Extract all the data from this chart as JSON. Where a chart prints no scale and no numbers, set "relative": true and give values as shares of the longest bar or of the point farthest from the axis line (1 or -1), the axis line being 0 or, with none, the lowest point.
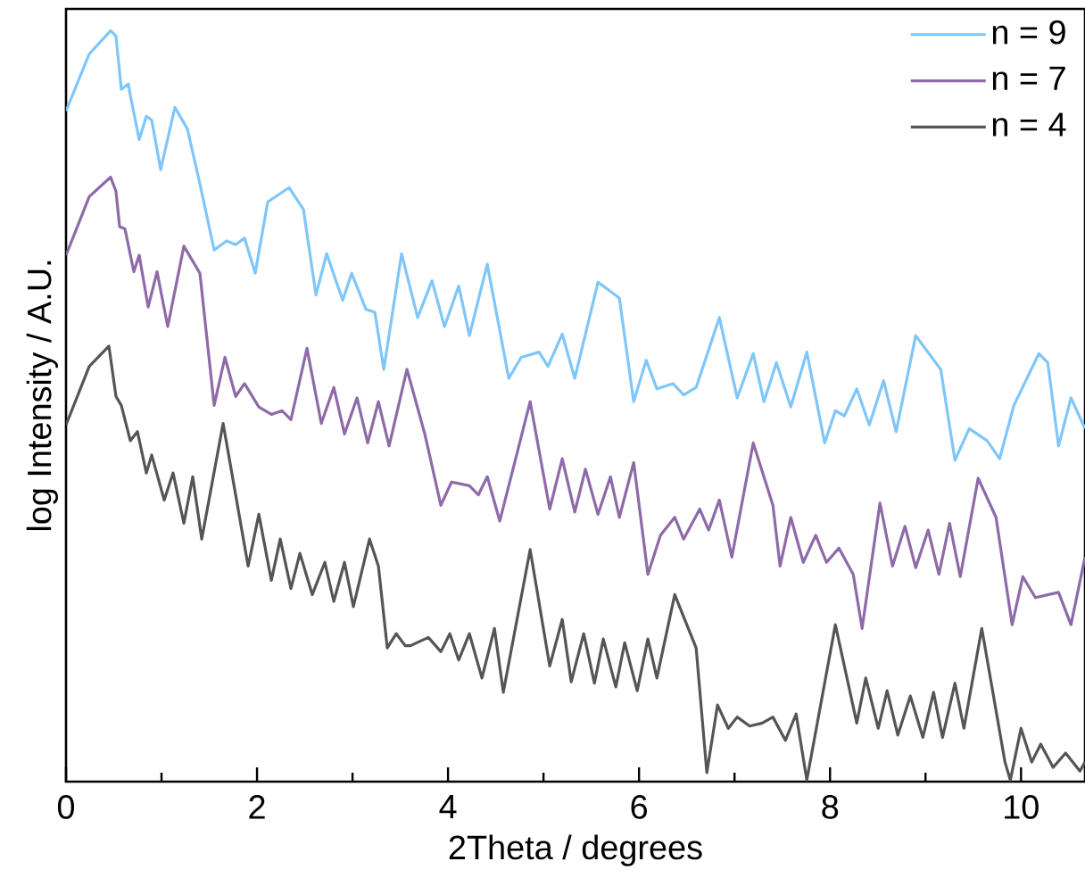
{
  "chart_data": {
    "type": "line",
    "xlabel": "2Theta / degrees",
    "ylabel": "log Intensity / A.U.",
    "relative": true,
    "legend": "top right",
    "xlim": [
      0,
      10.67
    ],
    "xticks": [
      0,
      {
        "value": 1,
        "label": null
      },
      2,
      {
        "value": 3,
        "label": null
      },
      4,
      {
        "value": 5,
        "label": null
      },
      6,
      {
        "value": 7,
        "label": null
      },
      8,
      {
        "value": 9,
        "label": null
      },
      10
    ],
    "series": [
      {
        "name": "n = 9",
        "color": "#7fc6fa",
        "x": [
          0,
          0.243,
          0.467,
          0.523,
          0.579,
          0.654,
          0.673,
          0.766,
          0.841,
          0.897,
          0.991,
          1.14,
          1.271,
          1.402,
          1.551,
          1.682,
          1.776,
          1.869,
          1.981,
          2.112,
          2.336,
          2.486,
          2.617,
          2.729,
          2.897,
          2.991,
          3.14,
          3.234,
          3.327,
          3.514,
          3.682,
          3.832,
          3.963,
          4.112,
          4.224,
          4.411,
          4.636,
          4.766,
          4.953,
          5.047,
          5.196,
          5.327,
          5.57,
          5.794,
          5.944,
          6.075,
          6.187,
          6.355,
          6.467,
          6.598,
          6.841,
          7.028,
          7.196,
          7.308,
          7.439,
          7.589,
          7.757,
          7.944,
          8.056,
          8.15,
          8.28,
          8.411,
          8.561,
          8.692,
          8.897,
          9.159,
          9.308,
          9.458,
          9.645,
          9.776,
          9.925,
          10.187,
          10.28,
          10.393,
          10.523,
          10.67
        ],
        "values": [
          0.893,
          0.969,
          1.0,
          0.993,
          0.922,
          0.929,
          0.914,
          0.855,
          0.886,
          0.881,
          0.815,
          0.898,
          0.869,
          0.796,
          0.708,
          0.72,
          0.715,
          0.724,
          0.677,
          0.772,
          0.791,
          0.762,
          0.648,
          0.703,
          0.641,
          0.677,
          0.629,
          0.625,
          0.549,
          0.703,
          0.618,
          0.667,
          0.606,
          0.66,
          0.594,
          0.689,
          0.537,
          0.565,
          0.572,
          0.553,
          0.596,
          0.537,
          0.665,
          0.644,
          0.506,
          0.561,
          0.523,
          0.53,
          0.515,
          0.525,
          0.618,
          0.511,
          0.57,
          0.506,
          0.558,
          0.499,
          0.572,
          0.451,
          0.494,
          0.487,
          0.523,
          0.475,
          0.534,
          0.466,
          0.594,
          0.549,
          0.428,
          0.47,
          0.454,
          0.43,
          0.501,
          0.57,
          0.558,
          0.447,
          0.511,
          0.47
        ]
      },
      {
        "name": "n = 7",
        "color": "#8e6aa8",
        "x": [
          0,
          0.243,
          0.467,
          0.523,
          0.561,
          0.617,
          0.71,
          0.766,
          0.86,
          0.953,
          1.065,
          1.234,
          1.402,
          1.551,
          1.664,
          1.776,
          1.869,
          2.019,
          2.15,
          2.262,
          2.355,
          2.523,
          2.673,
          2.804,
          2.916,
          3.047,
          3.159,
          3.271,
          3.383,
          3.57,
          3.757,
          3.925,
          4.037,
          4.224,
          4.318,
          4.411,
          4.542,
          4.86,
          5.065,
          5.196,
          5.327,
          5.439,
          5.57,
          5.701,
          5.794,
          5.944,
          6.093,
          6.224,
          6.374,
          6.467,
          6.636,
          6.729,
          6.841,
          6.972,
          7.196,
          7.402,
          7.477,
          7.589,
          7.72,
          7.85,
          7.963,
          8.093,
          8.243,
          8.336,
          8.523,
          8.654,
          8.785,
          8.897,
          9.028,
          9.14,
          9.252,
          9.364,
          9.551,
          9.738,
          9.907,
          10.019,
          10.15,
          10.393,
          10.523,
          10.67
        ],
        "values": [
          0.701,
          0.779,
          0.805,
          0.786,
          0.739,
          0.736,
          0.679,
          0.701,
          0.632,
          0.679,
          0.606,
          0.713,
          0.677,
          0.501,
          0.565,
          0.513,
          0.53,
          0.499,
          0.489,
          0.494,
          0.482,
          0.577,
          0.477,
          0.525,
          0.463,
          0.511,
          0.451,
          0.506,
          0.447,
          0.549,
          0.463,
          0.368,
          0.399,
          0.394,
          0.382,
          0.406,
          0.347,
          0.506,
          0.363,
          0.43,
          0.359,
          0.416,
          0.356,
          0.406,
          0.352,
          0.425,
          0.276,
          0.328,
          0.352,
          0.323,
          0.363,
          0.335,
          0.375,
          0.299,
          0.451,
          0.368,
          0.287,
          0.352,
          0.292,
          0.328,
          0.292,
          0.311,
          0.276,
          0.204,
          0.371,
          0.287,
          0.34,
          0.285,
          0.335,
          0.276,
          0.344,
          0.273,
          0.404,
          0.352,
          0.209,
          0.273,
          0.245,
          0.252,
          0.209,
          0.299
        ]
      },
      {
        "name": "n = 4",
        "color": "#555555",
        "x": [
          0,
          0.243,
          0.449,
          0.523,
          0.579,
          0.673,
          0.748,
          0.841,
          0.897,
          1.028,
          1.121,
          1.234,
          1.327,
          1.421,
          1.645,
          1.907,
          2.019,
          2.15,
          2.243,
          2.355,
          2.449,
          2.579,
          2.71,
          2.804,
          2.916,
          3.009,
          3.178,
          3.271,
          3.364,
          3.458,
          3.551,
          3.607,
          3.794,
          3.925,
          4.019,
          4.112,
          4.224,
          4.355,
          4.486,
          4.579,
          4.86,
          5.065,
          5.196,
          5.29,
          5.421,
          5.533,
          5.626,
          5.757,
          5.85,
          5.981,
          6.093,
          6.187,
          6.374,
          6.598,
          6.71,
          6.822,
          6.935,
          7.028,
          7.159,
          7.29,
          7.402,
          7.533,
          7.645,
          7.757,
          8.056,
          8.28,
          8.374,
          8.505,
          8.598,
          8.71,
          8.841,
          8.972,
          9.084,
          9.178,
          9.308,
          9.402,
          9.589,
          9.832,
          9.888,
          10.0,
          10.112,
          10.206,
          10.336,
          10.467,
          10.617,
          10.67
        ],
        "values": [
          0.475,
          0.553,
          0.58,
          0.513,
          0.501,
          0.454,
          0.466,
          0.411,
          0.435,
          0.375,
          0.411,
          0.344,
          0.406,
          0.323,
          0.477,
          0.287,
          0.356,
          0.268,
          0.323,
          0.257,
          0.304,
          0.249,
          0.292,
          0.24,
          0.292,
          0.233,
          0.323,
          0.287,
          0.178,
          0.197,
          0.181,
          0.181,
          0.192,
          0.173,
          0.197,
          0.162,
          0.197,
          0.138,
          0.204,
          0.119,
          0.309,
          0.154,
          0.216,
          0.133,
          0.197,
          0.131,
          0.19,
          0.126,
          0.185,
          0.121,
          0.19,
          0.138,
          0.249,
          0.178,
          0.012,
          0.102,
          0.071,
          0.086,
          0.074,
          0.078,
          0.086,
          0.055,
          0.09,
          0.002,
          0.209,
          0.078,
          0.138,
          0.071,
          0.121,
          0.062,
          0.114,
          0.059,
          0.119,
          0.059,
          0.131,
          0.071,
          0.204,
          0.026,
          0.002,
          0.071,
          0.026,
          0.05,
          0.019,
          0.038,
          0.014,
          0.026
        ]
      }
    ]
  }
}
